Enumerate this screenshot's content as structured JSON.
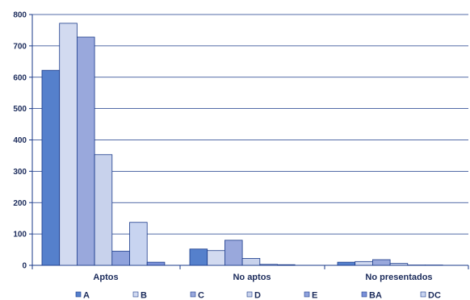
{
  "chart_data": {
    "type": "bar",
    "title": "",
    "xlabel": "",
    "ylabel": "",
    "categories": [
      "Aptos",
      "No aptos",
      "No presentados"
    ],
    "ylim": [
      0,
      800
    ],
    "yticks": [
      0,
      100,
      200,
      300,
      400,
      500,
      600,
      700,
      800
    ],
    "grid": true,
    "legend_position": "bottom",
    "series": [
      {
        "name": "A",
        "color": "#5580cc",
        "values": [
          622,
          52,
          10
        ]
      },
      {
        "name": "B",
        "color": "#d2daf0",
        "values": [
          772,
          47,
          12
        ]
      },
      {
        "name": "C",
        "color": "#99a8dc",
        "values": [
          728,
          80,
          18
        ]
      },
      {
        "name": "D",
        "color": "#c8d2ec",
        "values": [
          353,
          22,
          6
        ]
      },
      {
        "name": "E",
        "color": "#8fa2dc",
        "values": [
          45,
          3,
          1
        ]
      },
      {
        "name": "DC",
        "color": "#c8d4f0",
        "values": [
          137,
          2,
          1
        ]
      },
      {
        "name": "BA",
        "color": "#7a90d8",
        "values": [
          10,
          0,
          0
        ]
      }
    ],
    "legend_order": [
      "A",
      "B",
      "C",
      "D",
      "E",
      "BA",
      "DC"
    ]
  }
}
